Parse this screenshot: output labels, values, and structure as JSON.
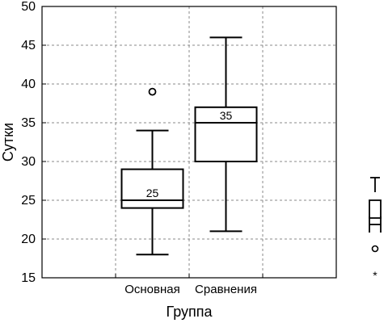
{
  "chart_data": {
    "type": "box",
    "title": "",
    "xlabel": "Группа",
    "ylabel": "Сутки",
    "ylim": [
      15,
      50
    ],
    "yticks": [
      "15",
      "20",
      "25",
      "30",
      "35",
      "40",
      "45",
      "50"
    ],
    "grid": {
      "horizontal": true,
      "vertical": true,
      "style": "dashed"
    },
    "categories": [
      "Основная",
      "Сравнения"
    ],
    "boxes": [
      {
        "category": "Основная",
        "whisker_low": 18,
        "q1": 24,
        "median": 25,
        "q3": 29,
        "whisker_high": 34,
        "median_label": "25",
        "outliers": [
          39
        ]
      },
      {
        "category": "Сравнения",
        "whisker_low": 21,
        "q1": 30,
        "median": 35,
        "q3": 37,
        "whisker_high": 46,
        "median_label": "35",
        "outliers": []
      }
    ],
    "legend": {
      "position": "right",
      "orientation": "vertical",
      "items": [
        {
          "symbol": "whisker",
          "label": ""
        },
        {
          "symbol": "box",
          "label": ""
        },
        {
          "symbol": "median",
          "label": ""
        },
        {
          "symbol": "outlier",
          "label": ""
        },
        {
          "symbol": "extreme",
          "label": ""
        }
      ]
    }
  }
}
